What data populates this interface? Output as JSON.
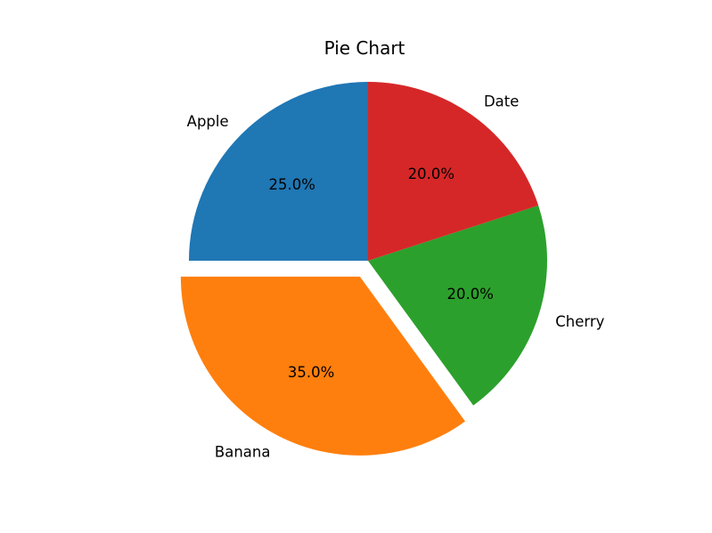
{
  "chart_data": {
    "type": "pie",
    "title": "Pie Chart",
    "categories": [
      "Apple",
      "Banana",
      "Cherry",
      "Date"
    ],
    "values": [
      25,
      35,
      20,
      20
    ],
    "percent_labels": [
      "25.0%",
      "35.0%",
      "20.0%",
      "20.0%"
    ],
    "colors": [
      "#1f77b4",
      "#ff7f0e",
      "#2ca02c",
      "#d62728"
    ],
    "explode": [
      0,
      0.1,
      0,
      0
    ],
    "start_angle": 90,
    "direction": "counterclockwise",
    "legend": "none"
  }
}
